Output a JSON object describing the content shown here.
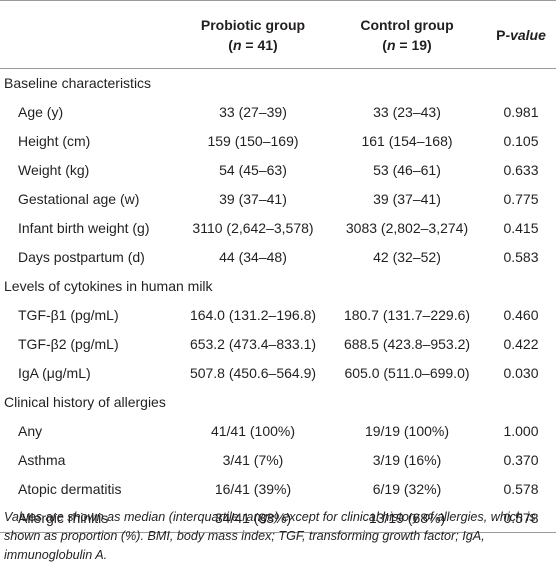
{
  "table": {
    "columns": [
      {
        "title": "Probiotic group",
        "subtitle": [
          "(",
          "n",
          " = 41)"
        ]
      },
      {
        "title": "Control group",
        "subtitle": [
          "(",
          "n",
          " = 19)"
        ]
      },
      {
        "title": [
          "P",
          "-value"
        ]
      }
    ],
    "sections": [
      {
        "title": "Baseline characteristics",
        "rows": [
          [
            "Age (y)",
            "33 (27–39)",
            "33 (23–43)",
            "0.981"
          ],
          [
            "Height (cm)",
            "159 (150–169)",
            "161 (154–168)",
            "0.105"
          ],
          [
            "Weight (kg)",
            "54 (45–63)",
            "53 (46–61)",
            "0.633"
          ],
          [
            "Gestational age (w)",
            "39 (37–41)",
            "39 (37–41)",
            "0.775"
          ],
          [
            "Infant birth weight (g)",
            "3110 (2,642–3,578)",
            "3083 (2,802–3,274)",
            "0.415"
          ],
          [
            "Days postpartum (d)",
            "44 (34–48)",
            "42 (32–52)",
            "0.583"
          ]
        ]
      },
      {
        "title": "Levels of cytokines in human milk",
        "rows": [
          [
            "TGF-β1 (pg/mL)",
            "164.0 (131.2–196.8)",
            "180.7 (131.7–229.6)",
            "0.460"
          ],
          [
            "TGF-β2 (pg/mL)",
            "653.2 (473.4–833.1)",
            "688.5 (423.8–953.2)",
            "0.422"
          ],
          [
            "IgA (μg/mL)",
            "507.8 (450.6–564.9)",
            "605.0 (511.0–699.0)",
            "0.030"
          ]
        ]
      },
      {
        "title": "Clinical history of allergies",
        "rows": [
          [
            "Any",
            "41/41 (100%)",
            "19/19 (100%)",
            "1.000"
          ],
          [
            "Asthma",
            "3/41 (7%)",
            "3/19 (16%)",
            "0.370"
          ],
          [
            "Atopic dermatitis",
            "16/41 (39%)",
            "6/19 (32%)",
            "0.578"
          ],
          [
            "Allergic rhinitis",
            "34/41 (83%)",
            "13/19 (68%)",
            "0.578"
          ]
        ]
      }
    ],
    "footnote": "Values are shown as median (interquartile range) except for clinical history of allergies, which is shown as proportion (%). BMI, body mass index; TGF, transforming growth factor; IgA, immunoglobulin A."
  }
}
